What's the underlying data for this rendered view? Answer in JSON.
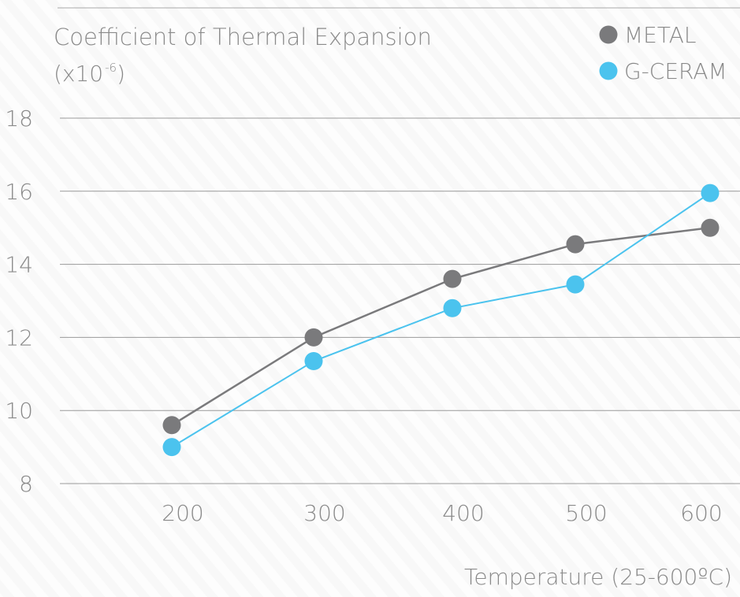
{
  "chart_data": {
    "type": "line",
    "title": "Coefficient of Thermal Expansion",
    "subtitle_prefix": "(x10",
    "subtitle_superscript": "-6",
    "subtitle_suffix": ")",
    "xlabel": "Temperature (25-600ºC)",
    "ylabel": "",
    "x": [
      200,
      300,
      400,
      500,
      600
    ],
    "x_tick_labels": [
      "200",
      "300",
      "400",
      "500",
      "600"
    ],
    "y_tick_labels": [
      "18",
      "16",
      "14",
      "12",
      "10",
      "8"
    ],
    "y_ticks": [
      18,
      16,
      14,
      12,
      10,
      8
    ],
    "ylim": [
      8,
      18
    ],
    "grid": true,
    "legend_position": "top-right",
    "series": [
      {
        "name": "METAL",
        "color": "#7a7a7c",
        "values": [
          9.6,
          12.0,
          13.6,
          14.55,
          15.0
        ]
      },
      {
        "name": "G-CERAM",
        "color": "#4bc3ee",
        "values": [
          9.0,
          11.35,
          12.8,
          13.45,
          15.95
        ]
      }
    ]
  }
}
